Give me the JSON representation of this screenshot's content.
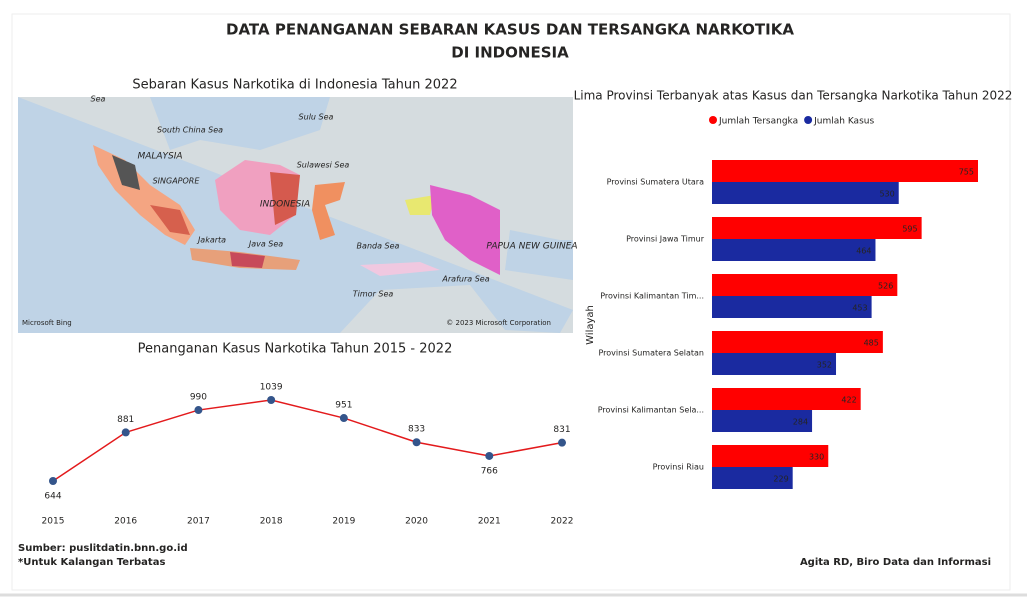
{
  "header": {
    "title_line1": "DATA PENANGANAN SEBARAN KASUS DAN TERSANGKA NARKOTIKA",
    "title_line2": "DI INDONESIA"
  },
  "map": {
    "title": "Sebaran Kasus Narkotika di Indonesia Tahun 2022",
    "labels": [
      "Sea",
      "South China Sea",
      "Sulu Sea",
      "MALAYSIA",
      "SINGAPORE",
      "Sulawesi Sea",
      "INDONESIA",
      "Jakarta",
      "Java Sea",
      "Banda Sea",
      "PAPUA NEW GUINEA",
      "Arafura Sea",
      "Timor Sea"
    ],
    "credit_left": "Microsoft Bing",
    "credit_right": "© 2023 Microsoft Corporation"
  },
  "chart_data": [
    {
      "type": "line",
      "title": "Penanganan Kasus Narkotika Tahun 2015 - 2022",
      "categories": [
        "2015",
        "2016",
        "2017",
        "2018",
        "2019",
        "2020",
        "2021",
        "2022"
      ],
      "values": [
        644,
        881,
        990,
        1039,
        951,
        833,
        766,
        831
      ],
      "color": "#e31a1c",
      "marker_color": "#34558b"
    },
    {
      "type": "hbar",
      "title": "Lima Provinsi Terbanyak atas Kasus dan Tersangka Narkotika Tahun 2022",
      "y_label": "Wilayah",
      "categories": [
        "Provinsi Sumatera Utara",
        "Provinsi Jawa Timur",
        "Provinsi Kalimantan Tim...",
        "Provinsi Sumatera Selatan",
        "Provinsi Kalimantan Sela...",
        "Provinsi Riau"
      ],
      "series": [
        {
          "name": "Jumlah Tersangka",
          "color": "#ff0000",
          "values": [
            755,
            595,
            526,
            485,
            422,
            330
          ]
        },
        {
          "name": "Jumlah Kasus",
          "color": "#1a2aa0",
          "values": [
            530,
            464,
            453,
            352,
            284,
            229
          ]
        }
      ],
      "legend": "top"
    }
  ],
  "footer": {
    "source": "Sumber: puslitdatin.bnn.go.id",
    "note": "*Untuk Kalangan Terbatas",
    "author": "Agita RD, Biro Data dan Informasi"
  }
}
